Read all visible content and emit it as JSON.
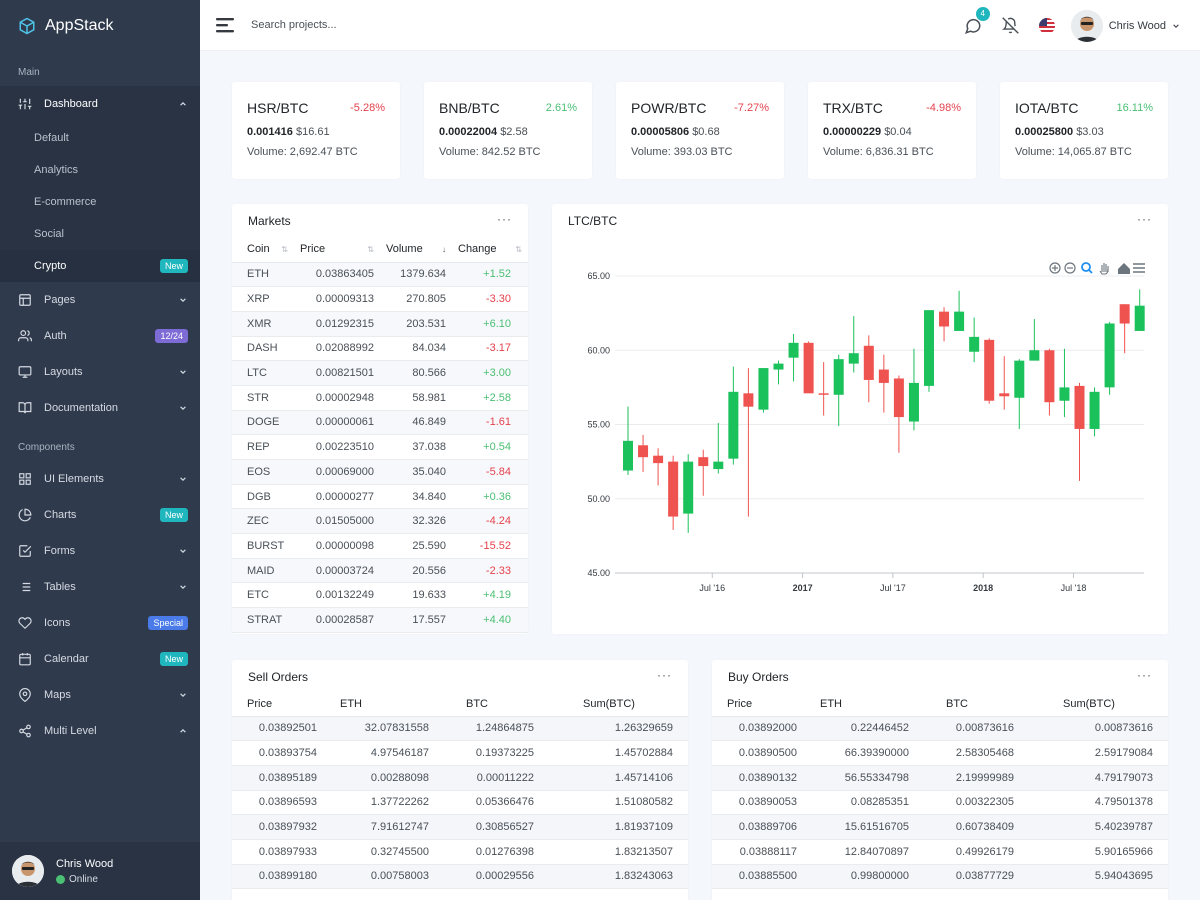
{
  "app": {
    "name": "AppStack"
  },
  "sidebar": {
    "section_main": "Main",
    "section_components": "Components",
    "dashboard": {
      "label": "Dashboard",
      "subitems": [
        "Default",
        "Analytics",
        "E-commerce",
        "Social",
        "Crypto"
      ],
      "crypto_badge": "New"
    },
    "items": {
      "pages": "Pages",
      "auth": "Auth",
      "auth_badge": "12/24",
      "layouts": "Layouts",
      "documentation": "Documentation",
      "ui_elements": "UI Elements",
      "charts": "Charts",
      "charts_badge": "New",
      "forms": "Forms",
      "tables": "Tables",
      "icons": "Icons",
      "icons_badge": "Special",
      "calendar": "Calendar",
      "calendar_badge": "New",
      "maps": "Maps",
      "multi_level": "Multi Level"
    },
    "user": {
      "name": "Chris Wood",
      "status": "Online"
    }
  },
  "topbar": {
    "search_placeholder": "Search projects...",
    "notification_count": "4",
    "user_name": "Chris Wood"
  },
  "tickers": [
    {
      "pair": "HSR/BTC",
      "change": "-5.28%",
      "price": "0.001416",
      "usd": "$16.61",
      "volume": "Volume: 2,692.47 BTC"
    },
    {
      "pair": "BNB/BTC",
      "change": "2.61%",
      "price": "0.00022004",
      "usd": "$2.58",
      "volume": "Volume: 842.52 BTC"
    },
    {
      "pair": "POWR/BTC",
      "change": "-7.27%",
      "price": "0.00005806",
      "usd": "$0.68",
      "volume": "Volume: 393.03 BTC"
    },
    {
      "pair": "TRX/BTC",
      "change": "-4.98%",
      "price": "0.00000229",
      "usd": "$0.04",
      "volume": "Volume: 6,836.31 BTC"
    },
    {
      "pair": "IOTA/BTC",
      "change": "16.11%",
      "price": "0.00025800",
      "usd": "$3.03",
      "volume": "Volume: 14,065.87 BTC"
    }
  ],
  "markets": {
    "title": "Markets",
    "more": "···",
    "columns": [
      "Coin",
      "Price",
      "Volume",
      "Change"
    ],
    "rows": [
      [
        "ETH",
        "0.03863405",
        "1379.634",
        "+1.52"
      ],
      [
        "XRP",
        "0.00009313",
        "270.805",
        "-3.30"
      ],
      [
        "XMR",
        "0.01292315",
        "203.531",
        "+6.10"
      ],
      [
        "DASH",
        "0.02088992",
        "84.034",
        "-3.17"
      ],
      [
        "LTC",
        "0.00821501",
        "80.566",
        "+3.00"
      ],
      [
        "STR",
        "0.00002948",
        "58.981",
        "+2.58"
      ],
      [
        "DOGE",
        "0.00000061",
        "46.849",
        "-1.61"
      ],
      [
        "REP",
        "0.00223510",
        "37.038",
        "+0.54"
      ],
      [
        "EOS",
        "0.00069000",
        "35.040",
        "-5.84"
      ],
      [
        "DGB",
        "0.00000277",
        "34.840",
        "+0.36"
      ],
      [
        "ZEC",
        "0.01505000",
        "32.326",
        "-4.24"
      ],
      [
        "BURST",
        "0.00000098",
        "25.590",
        "-15.52"
      ],
      [
        "MAID",
        "0.00003724",
        "20.556",
        "-2.33"
      ],
      [
        "ETC",
        "0.00132249",
        "19.633",
        "+4.19"
      ],
      [
        "STRAT",
        "0.00028587",
        "17.557",
        "+4.40"
      ]
    ]
  },
  "chart_card": {
    "title": "LTC/BTC",
    "more": "···"
  },
  "chart_data": {
    "type": "candlestick",
    "ylim": [
      45,
      65
    ],
    "yticks": [
      "45.00",
      "50.00",
      "55.00",
      "60.00",
      "65.00"
    ],
    "xticks": [
      {
        "label": "Jul '16",
        "i": 5.6,
        "bold": false
      },
      {
        "label": "2017",
        "i": 11.6,
        "bold": true
      },
      {
        "label": "Jul '17",
        "i": 17.6,
        "bold": false
      },
      {
        "label": "2018",
        "i": 23.6,
        "bold": true
      },
      {
        "label": "Jul '18",
        "i": 29.6,
        "bold": false
      }
    ],
    "colors": {
      "up": "#1bc15b",
      "down": "#ef5350"
    },
    "candles": [
      [
        51.9,
        53.9,
        56.2,
        51.6
      ],
      [
        53.6,
        52.8,
        54.3,
        51.8
      ],
      [
        52.9,
        52.4,
        53.4,
        50.9
      ],
      [
        52.5,
        48.8,
        52.9,
        47.9
      ],
      [
        49.0,
        52.5,
        53.0,
        47.7
      ],
      [
        52.8,
        52.2,
        53.3,
        50.2
      ],
      [
        52.0,
        52.5,
        55.1,
        51.7
      ],
      [
        52.7,
        57.2,
        58.9,
        52.3
      ],
      [
        57.1,
        56.2,
        58.8,
        48.8
      ],
      [
        56.0,
        58.8,
        58.8,
        55.8
      ],
      [
        58.7,
        59.1,
        59.3,
        57.7
      ],
      [
        59.5,
        60.5,
        61.1,
        57.9
      ],
      [
        60.5,
        57.1,
        60.6,
        57.2
      ],
      [
        57.1,
        57.0,
        59.2,
        55.6
      ],
      [
        57.0,
        59.4,
        59.7,
        54.9
      ],
      [
        59.1,
        59.8,
        62.3,
        58.5
      ],
      [
        60.3,
        58.0,
        61.0,
        56.5
      ],
      [
        58.7,
        57.8,
        59.7,
        55.8
      ],
      [
        58.1,
        55.5,
        58.3,
        53.1
      ],
      [
        55.2,
        57.8,
        60.1,
        54.6
      ],
      [
        57.6,
        62.7,
        62.7,
        57.2
      ],
      [
        62.6,
        61.6,
        62.9,
        60.6
      ],
      [
        61.3,
        62.6,
        64.0,
        61.6
      ],
      [
        59.9,
        60.9,
        62.2,
        59.2
      ],
      [
        60.7,
        56.6,
        60.8,
        56.4
      ],
      [
        57.1,
        56.9,
        59.6,
        56.0
      ],
      [
        56.8,
        59.3,
        59.4,
        54.7
      ],
      [
        59.3,
        60.0,
        62.1,
        59.4
      ],
      [
        60.0,
        56.5,
        60.1,
        55.6
      ],
      [
        56.6,
        57.5,
        60.1,
        55.5
      ],
      [
        57.6,
        54.7,
        57.8,
        51.2
      ],
      [
        54.7,
        57.2,
        57.5,
        54.2
      ],
      [
        57.5,
        61.8,
        61.9,
        57.0
      ],
      [
        63.1,
        61.8,
        63.1,
        59.8
      ],
      [
        61.3,
        63.0,
        64.1,
        61.4
      ]
    ]
  },
  "sell_orders": {
    "title": "Sell Orders",
    "more": "···",
    "columns": [
      "Price",
      "ETH",
      "BTC",
      "Sum(BTC)"
    ],
    "rows": [
      [
        "0.03892501",
        "32.07831558",
        "1.24864875",
        "1.26329659"
      ],
      [
        "0.03893754",
        "4.97546187",
        "0.19373225",
        "1.45702884"
      ],
      [
        "0.03895189",
        "0.00288098",
        "0.00011222",
        "1.45714106"
      ],
      [
        "0.03896593",
        "1.37722262",
        "0.05366476",
        "1.51080582"
      ],
      [
        "0.03897932",
        "7.91612747",
        "0.30856527",
        "1.81937109"
      ],
      [
        "0.03897933",
        "0.32745500",
        "0.01276398",
        "1.83213507"
      ],
      [
        "0.03899180",
        "0.00758003",
        "0.00029556",
        "1.83243063"
      ]
    ]
  },
  "buy_orders": {
    "title": "Buy Orders",
    "more": "···",
    "columns": [
      "Price",
      "ETH",
      "BTC",
      "Sum(BTC)"
    ],
    "rows": [
      [
        "0.03892000",
        "0.22446452",
        "0.00873616",
        "0.00873616"
      ],
      [
        "0.03890500",
        "66.39390000",
        "2.58305468",
        "2.59179084"
      ],
      [
        "0.03890132",
        "56.55334798",
        "2.19999989",
        "4.79179073"
      ],
      [
        "0.03890053",
        "0.08285351",
        "0.00322305",
        "4.79501378"
      ],
      [
        "0.03889706",
        "15.61516705",
        "0.60738409",
        "5.40239787"
      ],
      [
        "0.03888117",
        "12.84070897",
        "0.49926179",
        "5.90165966"
      ],
      [
        "0.03885500",
        "0.99800000",
        "0.03877729",
        "5.94043695"
      ]
    ]
  }
}
